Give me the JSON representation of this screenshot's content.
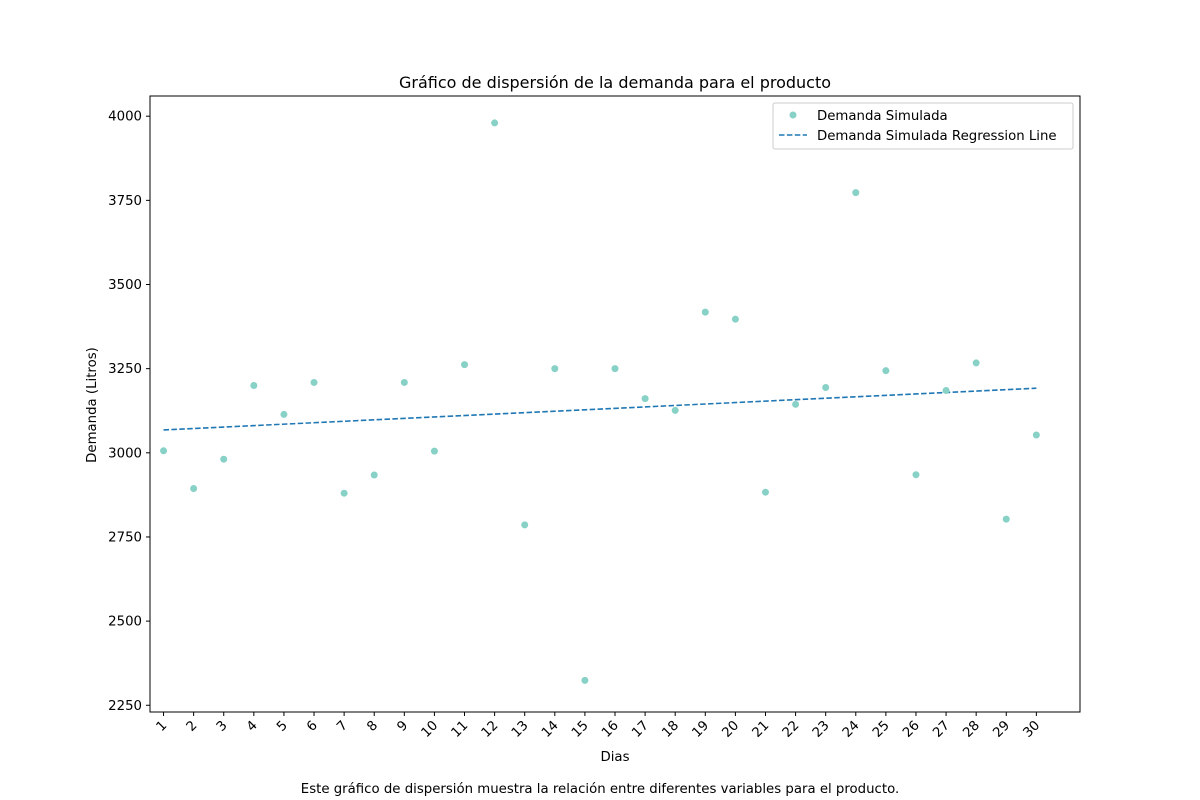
{
  "chart_data": {
    "type": "scatter",
    "title": "Gráfico de dispersión de la demanda para el producto",
    "xlabel": "Dias",
    "ylabel": "Demanda (Litros)",
    "ylim": [
      2230,
      4060
    ],
    "yticks": [
      2250,
      2500,
      2750,
      3000,
      3250,
      3500,
      3750,
      4000
    ],
    "x": [
      1,
      2,
      3,
      4,
      5,
      6,
      7,
      8,
      9,
      10,
      11,
      12,
      13,
      14,
      15,
      16,
      17,
      18,
      19,
      20,
      21,
      22,
      23,
      24,
      25,
      26,
      27,
      28,
      29,
      30
    ],
    "series": [
      {
        "name": "Demanda Simulada",
        "color": "#88d1c7",
        "values": [
          3006,
          2894,
          2981,
          3200,
          3114,
          3209,
          2880,
          2934,
          3209,
          3005,
          3262,
          3980,
          2786,
          3250,
          2324,
          3250,
          3161,
          3126,
          3418,
          3397,
          2883,
          3144,
          3194,
          3773,
          3244,
          2935,
          3185,
          3267,
          2803,
          3053
        ]
      }
    ],
    "regression": {
      "name": "Demanda Simulada Regression Line",
      "color": "#1f77b4",
      "start": [
        1,
        3068
      ],
      "end": [
        30,
        3192
      ]
    },
    "legend_position": "top-right",
    "grid": false
  },
  "caption": "Este gráfico de dispersión muestra la relación entre diferentes variables para el producto."
}
